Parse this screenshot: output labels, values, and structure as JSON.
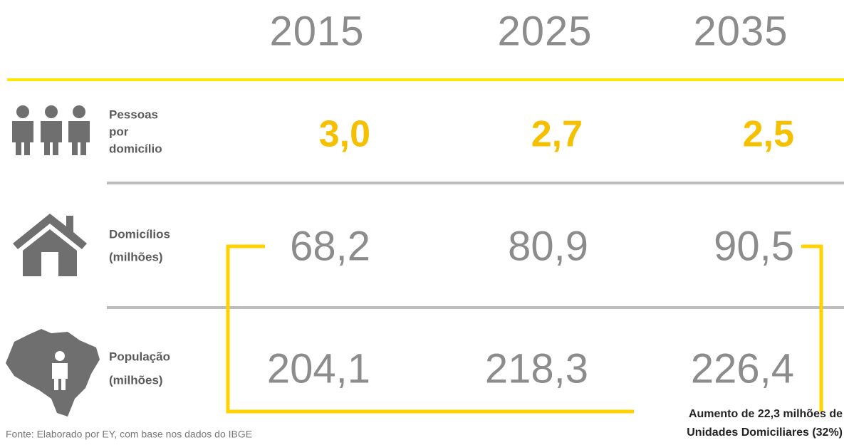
{
  "header": {
    "years": [
      "2015",
      "2025",
      "2035"
    ]
  },
  "rows": [
    {
      "label": [
        "Pessoas",
        "por",
        "domicílio"
      ],
      "values": [
        "3,0",
        "2,7",
        "2,5"
      ]
    },
    {
      "label": [
        "Domicílios",
        "(milhões)"
      ],
      "values": [
        "68,2",
        "80,9",
        "90,5"
      ]
    },
    {
      "label": [
        "População",
        "(milhões)"
      ],
      "values": [
        "204,1",
        "218,3",
        "226,4"
      ]
    }
  ],
  "annotation": [
    "Aumento de 22,3 milhões de",
    "Unidades Domiciliares (32%)"
  ],
  "footer": {
    "source": "Fonte: Elaborado por EY, com base nos dados do IBGE"
  }
}
